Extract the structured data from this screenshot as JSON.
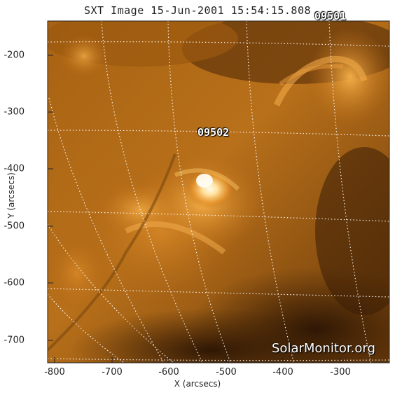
{
  "title": "SXT Image 15-Jun-2001 15:54:15.808",
  "x_axis": {
    "label": "X (arcsecs)",
    "ticks": [
      "-800",
      "-700",
      "-600",
      "-500",
      "-400",
      "-300"
    ]
  },
  "y_axis": {
    "label": "Y (arcsecs)",
    "ticks": [
      "-200",
      "-300",
      "-400",
      "-500",
      "-600",
      "-700"
    ]
  },
  "regions": [
    {
      "id": "ar-09502",
      "label": "09502"
    },
    {
      "id": "ar-09501",
      "label": "09501"
    }
  ],
  "watermark": "SolarMonitor.org",
  "colors": {
    "hot": "#fff4c8",
    "bright": "#f2a640",
    "mid": "#b56a14",
    "dark": "#3a1e05",
    "grid": "#ffffff"
  }
}
